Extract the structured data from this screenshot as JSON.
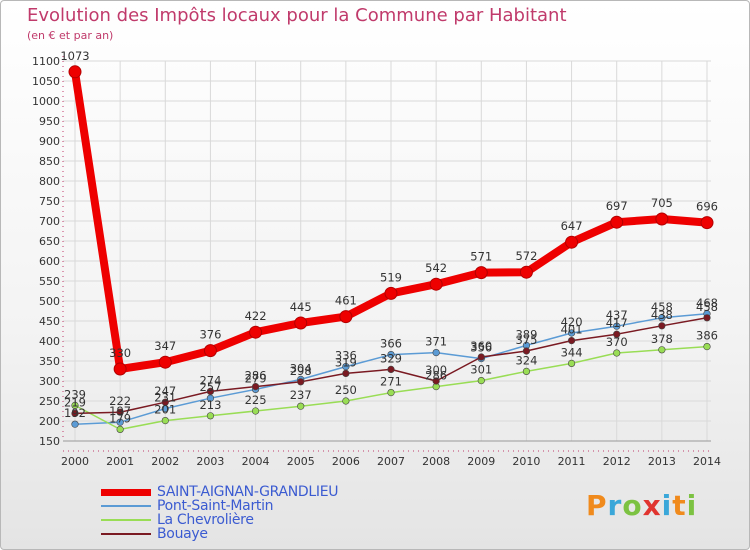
{
  "title": "Evolution des Impôts locaux pour la Commune par Habitant",
  "subtitle": "(en € et par an)",
  "logo": {
    "text": "Proxiti",
    "colors": [
      "#f08a1c",
      "#3aa7d9",
      "#7cc242",
      "#e0342f",
      "#3aa7d9",
      "#f08a1c",
      "#7cc242"
    ]
  },
  "chart_data": {
    "type": "line",
    "title": "Evolution des Impôts locaux pour la Commune par Habitant",
    "subtitle": "(en € et par an)",
    "x": [
      "2000",
      "2001",
      "2002",
      "2003",
      "2004",
      "2005",
      "2006",
      "2007",
      "2008",
      "2009",
      "2010",
      "2011",
      "2012",
      "2013",
      "2014"
    ],
    "ylim": [
      150,
      1100
    ],
    "yticks": [
      150,
      200,
      250,
      300,
      350,
      400,
      450,
      500,
      550,
      600,
      650,
      700,
      750,
      800,
      850,
      900,
      950,
      1000,
      1050,
      1100
    ],
    "grid": true,
    "legend_position": "bottom-left",
    "series": [
      {
        "name": "SAINT-AIGNAN-GRANDLIEU",
        "color": "#ee0000",
        "values": [
          1073,
          330,
          347,
          376,
          422,
          445,
          461,
          519,
          542,
          571,
          572,
          647,
          697,
          705,
          696
        ]
      },
      {
        "name": "Pont-Saint-Martin",
        "color": "#5b9bd5",
        "values": [
          192,
          197,
          231,
          257,
          279,
          304,
          336,
          366,
          371,
          356,
          389,
          420,
          437,
          458,
          468
        ]
      },
      {
        "name": "La Chevrolière",
        "color": "#99dd55",
        "values": [
          239,
          179,
          201,
          213,
          225,
          237,
          250,
          271,
          286,
          301,
          324,
          344,
          370,
          378,
          386
        ]
      },
      {
        "name": "Bouaye",
        "color": "#7a1a22",
        "values": [
          219,
          222,
          247,
          274,
          286,
          298,
          319,
          329,
          300,
          360,
          375,
          401,
          417,
          438,
          458
        ]
      }
    ]
  }
}
